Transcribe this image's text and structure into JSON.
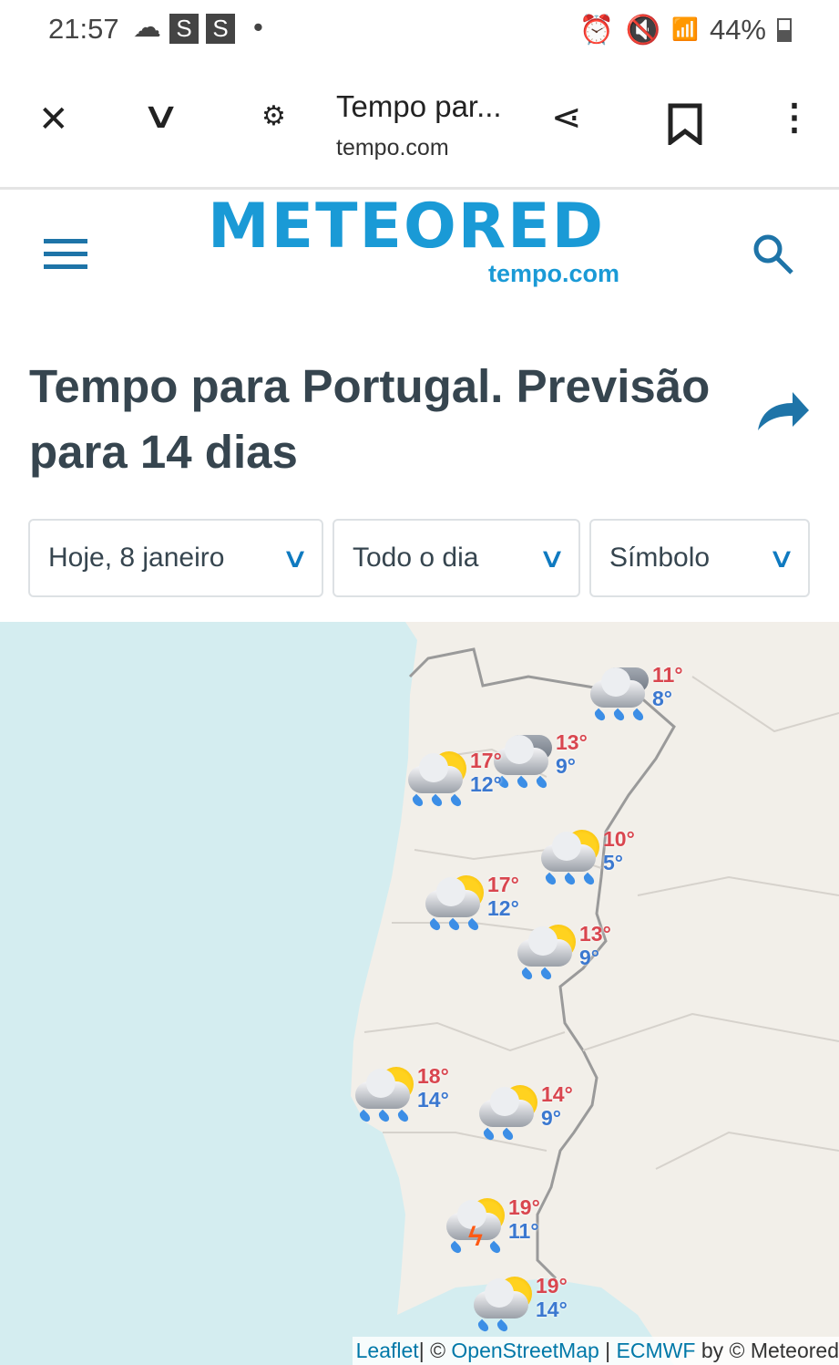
{
  "status_bar": {
    "time": "21:57",
    "notif1": "S",
    "notif2": "S",
    "battery": "44%"
  },
  "browser": {
    "title": "Tempo par...",
    "url": "tempo.com"
  },
  "site": {
    "logo": "METEORED",
    "logo_sub": "tempo.com"
  },
  "page": {
    "title": "Tempo para Portugal. Previsão para 14 dias"
  },
  "filters": {
    "date": "Hoje, 8 janeiro",
    "period": "Todo o dia",
    "mode": "Símbolo"
  },
  "markers": [
    {
      "icon": "heavy-rain",
      "max": "11°",
      "min": "8°"
    },
    {
      "icon": "heavy-rain",
      "max": "13°",
      "min": "9°"
    },
    {
      "icon": "sun-rain",
      "max": "17°",
      "min": "12°"
    },
    {
      "icon": "sun-rain",
      "max": "10°",
      "min": "5°"
    },
    {
      "icon": "sun-rain",
      "max": "17°",
      "min": "12°"
    },
    {
      "icon": "sun-rain",
      "max": "13°",
      "min": "9°"
    },
    {
      "icon": "sun-rain",
      "max": "18°",
      "min": "14°"
    },
    {
      "icon": "sun-rain",
      "max": "14°",
      "min": "9°"
    },
    {
      "icon": "sun-storm",
      "max": "19°",
      "min": "11°"
    },
    {
      "icon": "sun-rain",
      "max": "19°",
      "min": "14°"
    }
  ],
  "attribution": {
    "leaflet": "Leaflet",
    "osm": "OpenStreetMap",
    "ecmwf": "ECMWF",
    "by": "by © Meteored",
    "sep": "| ©"
  },
  "colors": {
    "brand": "#1a9ad6",
    "max": "#d9464f",
    "min": "#3b78d0",
    "sea": "#d4edf0",
    "land": "#f2efe9"
  }
}
